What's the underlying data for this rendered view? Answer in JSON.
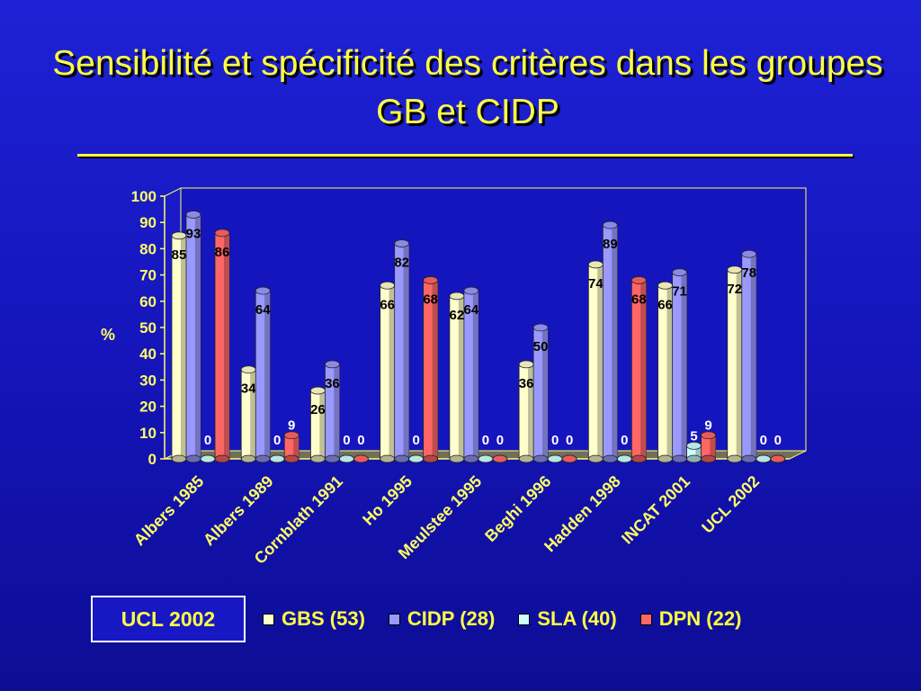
{
  "title": "Sensibilité et spécificité des critères dans les groupes  GB et CIDP",
  "note_box": "UCL 2002",
  "chart_data": {
    "type": "bar",
    "ylabel": "%",
    "ylim": [
      0,
      100
    ],
    "yticks": [
      0,
      10,
      20,
      30,
      40,
      50,
      60,
      70,
      80,
      90,
      100
    ],
    "categories": [
      "Albers 1985",
      "Albers 1989",
      "Cornblath 1991",
      "Ho 1995",
      "Meulstee 1995",
      "Beghi 1996",
      "Hadden 1998",
      "INCAT 2001",
      "UCL 2002"
    ],
    "series": [
      {
        "name": "GBS (53)",
        "color": "#ffffcc",
        "values": [
          85,
          34,
          26,
          66,
          62,
          36,
          74,
          66,
          72
        ]
      },
      {
        "name": "CIDP (28)",
        "color": "#9999ff",
        "values": [
          93,
          64,
          36,
          82,
          64,
          50,
          89,
          71,
          78
        ]
      },
      {
        "name": "SLA (40)",
        "color": "#ccffff",
        "values": [
          0,
          0,
          0,
          0,
          0,
          0,
          0,
          5,
          0
        ]
      },
      {
        "name": "DPN (22)",
        "color": "#ff6666",
        "values": [
          86,
          9,
          0,
          68,
          0,
          0,
          68,
          9,
          0
        ]
      }
    ],
    "grid": false,
    "legend_position": "bottom"
  }
}
